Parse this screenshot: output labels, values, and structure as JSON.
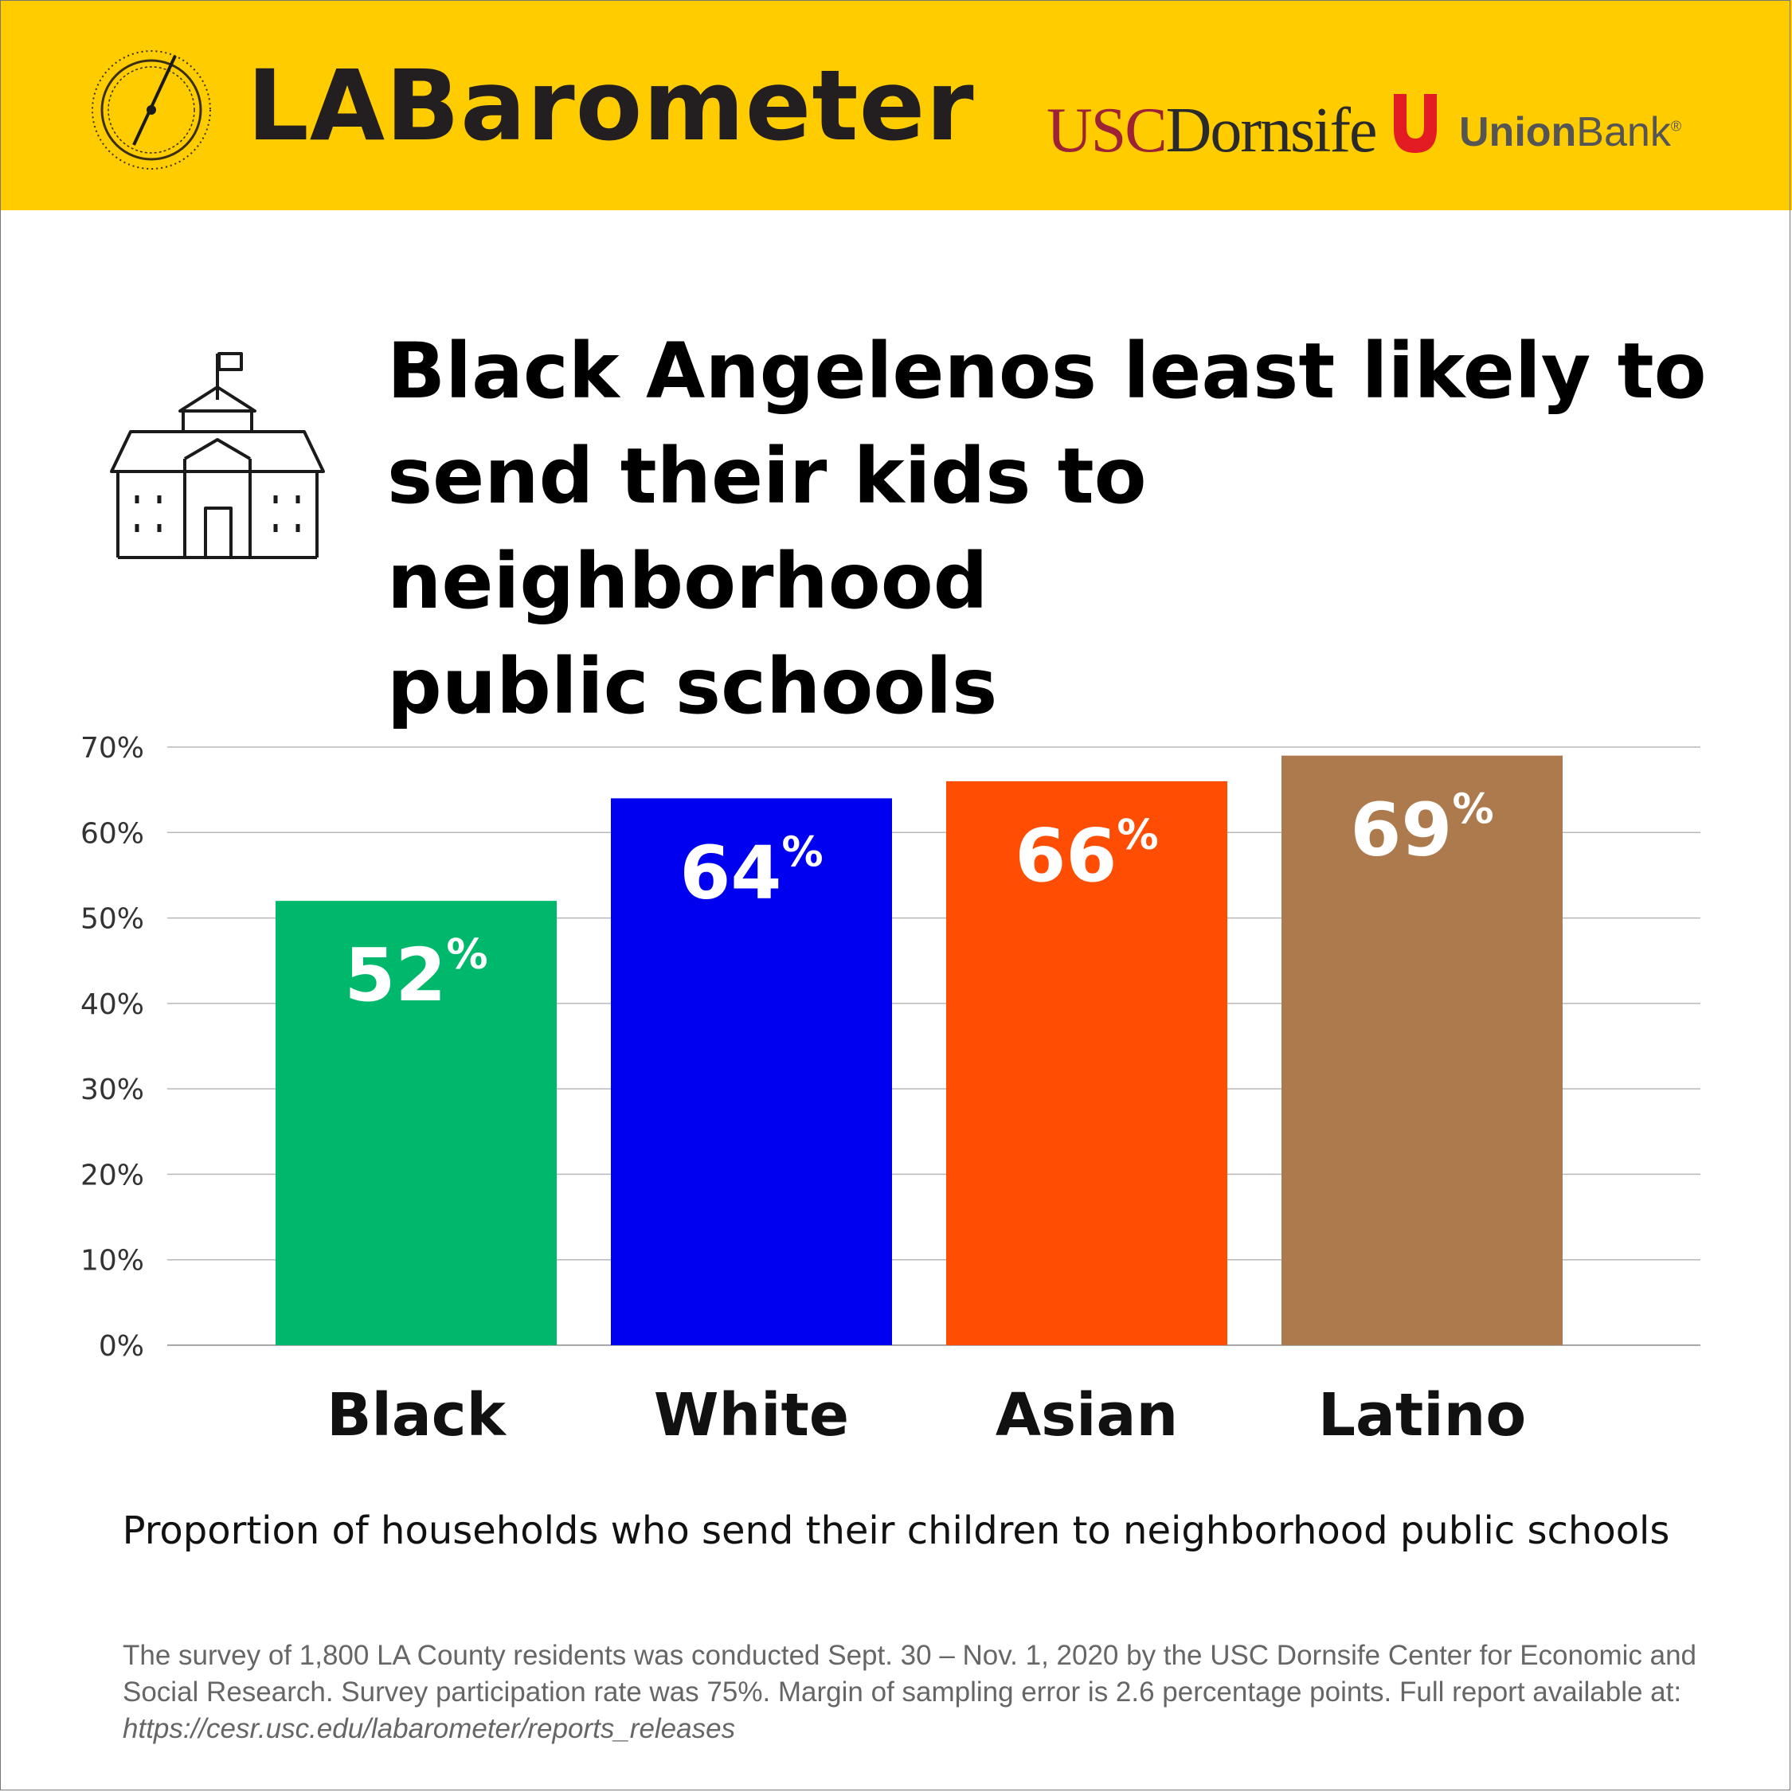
{
  "header": {
    "brand": "LABarometer",
    "usc_red": "USC",
    "usc_dark": "Dornsife",
    "union_bold": "Union",
    "union_regular": "Bank",
    "union_mark": "®",
    "background_color": "#FFCC00"
  },
  "title": {
    "lines": [
      "Black Angelenos least likely to",
      "send their kids to neighborhood",
      "public schools"
    ],
    "icon": "school-building-icon"
  },
  "chart_data": {
    "type": "bar",
    "title": "Black Angelenos least likely to send their kids to neighborhood public schools",
    "xlabel": "Proportion of households who send their children to neighborhood public schools",
    "ylabel": "",
    "categories": [
      "Black",
      "White",
      "Asian",
      "Latino"
    ],
    "values": [
      52,
      64,
      66,
      69
    ],
    "value_labels": [
      "52",
      "64",
      "66",
      "69"
    ],
    "value_suffix": "%",
    "colors": [
      "#00B86B",
      "#0000F0",
      "#FF4D03",
      "#AD7A4E"
    ],
    "ylim": [
      0,
      70
    ],
    "yticks": [
      0,
      10,
      20,
      30,
      40,
      50,
      60,
      70
    ],
    "ytick_labels": [
      "0%",
      "10%",
      "20%",
      "30%",
      "40%",
      "50%",
      "60%",
      "70%"
    ],
    "grid": true,
    "legend": "none"
  },
  "footnote": {
    "line1": "The survey of 1,800 LA County residents was conducted Sept. 30 – Nov. 1, 2020 by the USC Dornsife Center for Economic and",
    "line2": "Social Research. Survey participation rate was 75%. Margin of sampling error is 2.6 percentage points. Full report available at:",
    "url": "https://cesr.usc.edu/labarometer/reports_releases"
  }
}
